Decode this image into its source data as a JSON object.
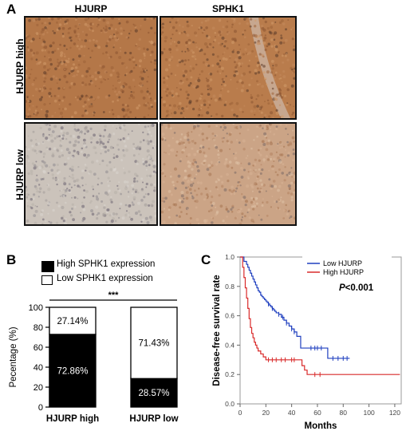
{
  "panel_a": {
    "letter": "A",
    "columns": [
      "HJURP",
      "SPHK1"
    ],
    "rows": [
      "HJURP high",
      "HJURP low"
    ],
    "stain_colors": {
      "high": "#b87a4c",
      "low_hjurp": "#c8c0b8",
      "low_sphk1": "#c9a283"
    }
  },
  "panel_b": {
    "letter": "B",
    "legend": [
      "High SPHK1 expression",
      "Low SPHK1 expression"
    ],
    "significance": "***"
  },
  "panel_c": {
    "letter": "C",
    "legend": [
      "Low HJURP",
      "High HJURP"
    ],
    "pvalue": "P<0.001",
    "colors": {
      "low": "#1f3fbf",
      "high": "#d92a2a"
    }
  },
  "chart_data": [
    {
      "type": "bar",
      "stacked": true,
      "categories": [
        "HJURP high",
        "HJURP low"
      ],
      "series": [
        {
          "name": "High SPHK1 expression",
          "values": [
            72.86,
            28.57
          ],
          "labels": [
            "72.86%",
            "28.57%"
          ],
          "color": "#000000"
        },
        {
          "name": "Low SPHK1 expression",
          "values": [
            27.14,
            71.43
          ],
          "labels": [
            "27.14%",
            "71.43%"
          ],
          "color": "#ffffff"
        }
      ],
      "ylabel": "Pecentage (%)",
      "ylim": [
        0,
        100
      ],
      "yticks": [
        0,
        20,
        40,
        60,
        80,
        100
      ],
      "legend_position": "top"
    },
    {
      "type": "line",
      "step": true,
      "xlabel": "Months",
      "ylabel": "Disease-free survival rate",
      "xlim": [
        0,
        125
      ],
      "ylim": [
        0,
        1.0
      ],
      "xticks": [
        0,
        20,
        40,
        60,
        80,
        100,
        120
      ],
      "yticks": [
        "0.0",
        "0.2",
        "0.4",
        "0.6",
        "0.8",
        "1.0"
      ],
      "legend_position": "top-right",
      "series": [
        {
          "name": "Low HJURP",
          "color": "#1f3fbf",
          "x": [
            0,
            3,
            5,
            6,
            7,
            8,
            9,
            10,
            11,
            12,
            13,
            14,
            15,
            16,
            17,
            18,
            19,
            20,
            21,
            22,
            23,
            24,
            25,
            26,
            27,
            28,
            30,
            32,
            34,
            36,
            38,
            40,
            42,
            44,
            47,
            52,
            58,
            62,
            68,
            70,
            85
          ],
          "y": [
            1.0,
            0.97,
            0.95,
            0.93,
            0.91,
            0.89,
            0.87,
            0.85,
            0.83,
            0.81,
            0.79,
            0.77,
            0.76,
            0.74,
            0.73,
            0.72,
            0.71,
            0.7,
            0.69,
            0.68,
            0.67,
            0.66,
            0.65,
            0.64,
            0.63,
            0.62,
            0.61,
            0.59,
            0.57,
            0.55,
            0.53,
            0.51,
            0.49,
            0.46,
            0.38,
            0.38,
            0.38,
            0.38,
            0.31,
            0.31,
            0.31
          ],
          "censored_x": [
            22,
            25,
            30,
            33,
            36,
            40,
            42,
            55,
            58,
            60,
            63,
            72,
            76,
            80,
            83
          ]
        },
        {
          "name": "High HJURP",
          "color": "#d92a2a",
          "x": [
            0,
            2,
            3,
            4,
            5,
            6,
            7,
            8,
            9,
            10,
            11,
            12,
            13,
            14,
            16,
            18,
            20,
            25,
            40,
            48,
            50,
            52,
            60,
            124
          ],
          "y": [
            1.0,
            0.93,
            0.86,
            0.79,
            0.72,
            0.65,
            0.58,
            0.52,
            0.48,
            0.45,
            0.42,
            0.4,
            0.38,
            0.36,
            0.34,
            0.32,
            0.3,
            0.3,
            0.3,
            0.26,
            0.23,
            0.2,
            0.2,
            0.2
          ],
          "censored_x": [
            22,
            25,
            28,
            32,
            35,
            40,
            42,
            58,
            62
          ]
        }
      ]
    }
  ]
}
